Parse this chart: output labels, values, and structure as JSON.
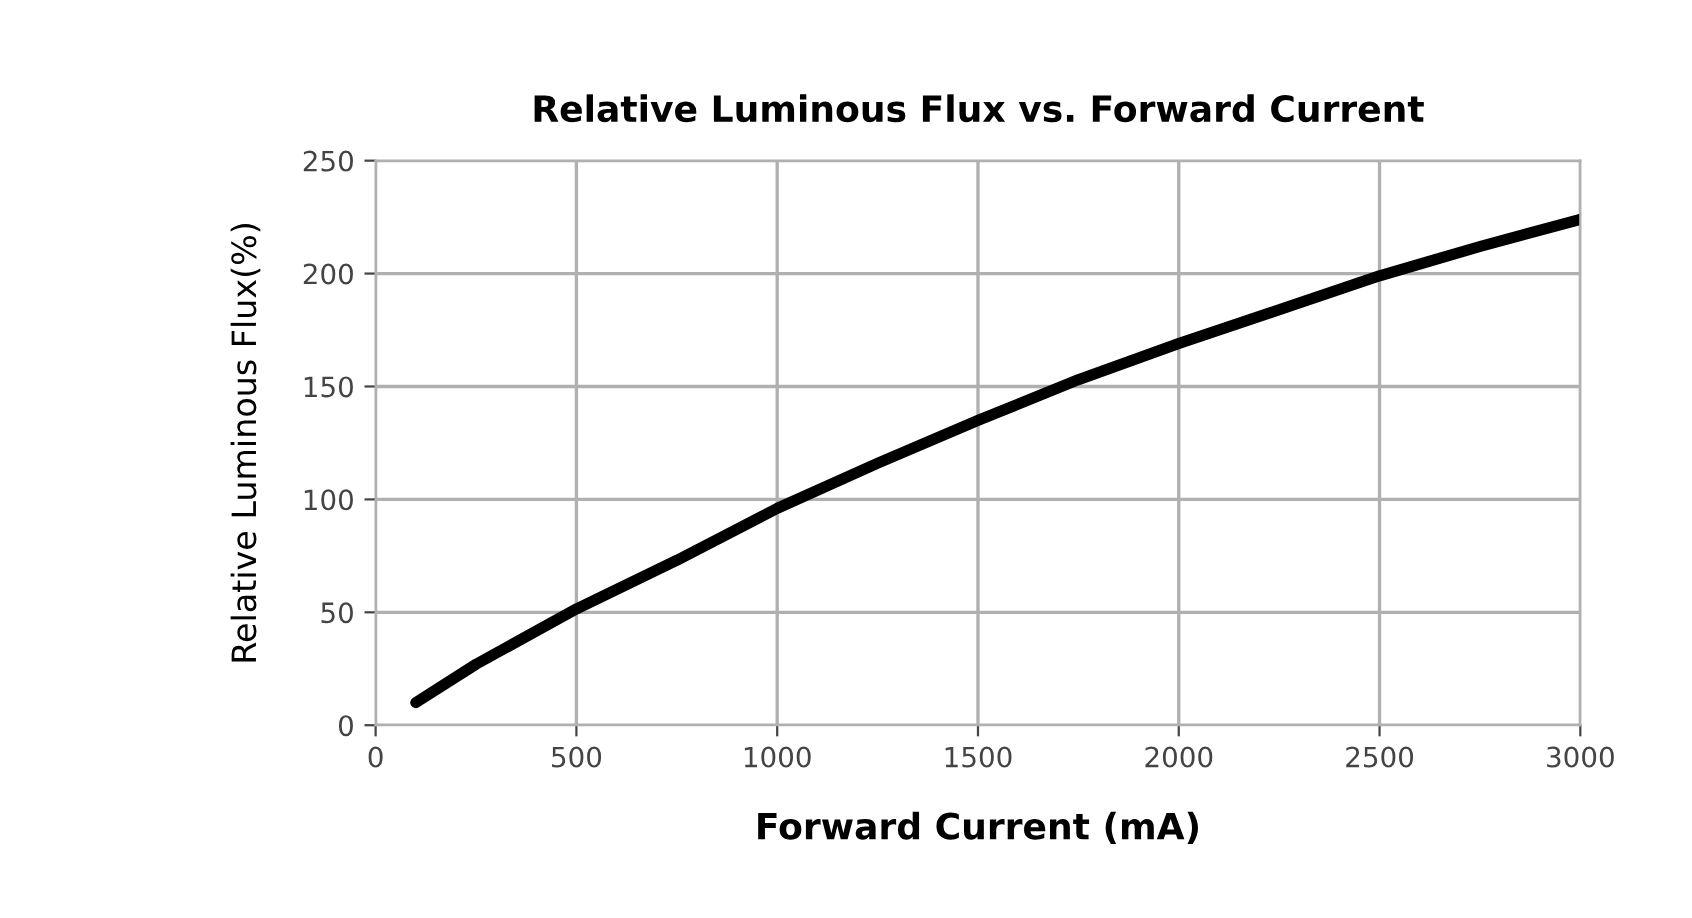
{
  "chart_data": {
    "type": "line",
    "title": "Relative Luminous Flux vs. Forward Current",
    "xlabel": "Forward Current (mA)",
    "ylabel": "Relative Luminous Flux(%)",
    "x": [
      100,
      250,
      500,
      750,
      1000,
      1250,
      1500,
      1750,
      2000,
      2250,
      2500,
      2750,
      3000
    ],
    "series": [
      {
        "color": "#000000",
        "values": [
          10,
          27,
          51.5,
          73,
          96,
          116,
          135,
          153,
          169,
          184,
          199,
          212,
          224
        ]
      }
    ],
    "xlim": [
      0,
      3000
    ],
    "xticks": [
      0,
      500,
      1000,
      1500,
      2000,
      2500,
      3000
    ],
    "ylim": [
      0,
      250
    ],
    "yticks": [
      0,
      50,
      100,
      150,
      200,
      250
    ],
    "grid": true,
    "marker": "none",
    "line_style": "solid"
  }
}
